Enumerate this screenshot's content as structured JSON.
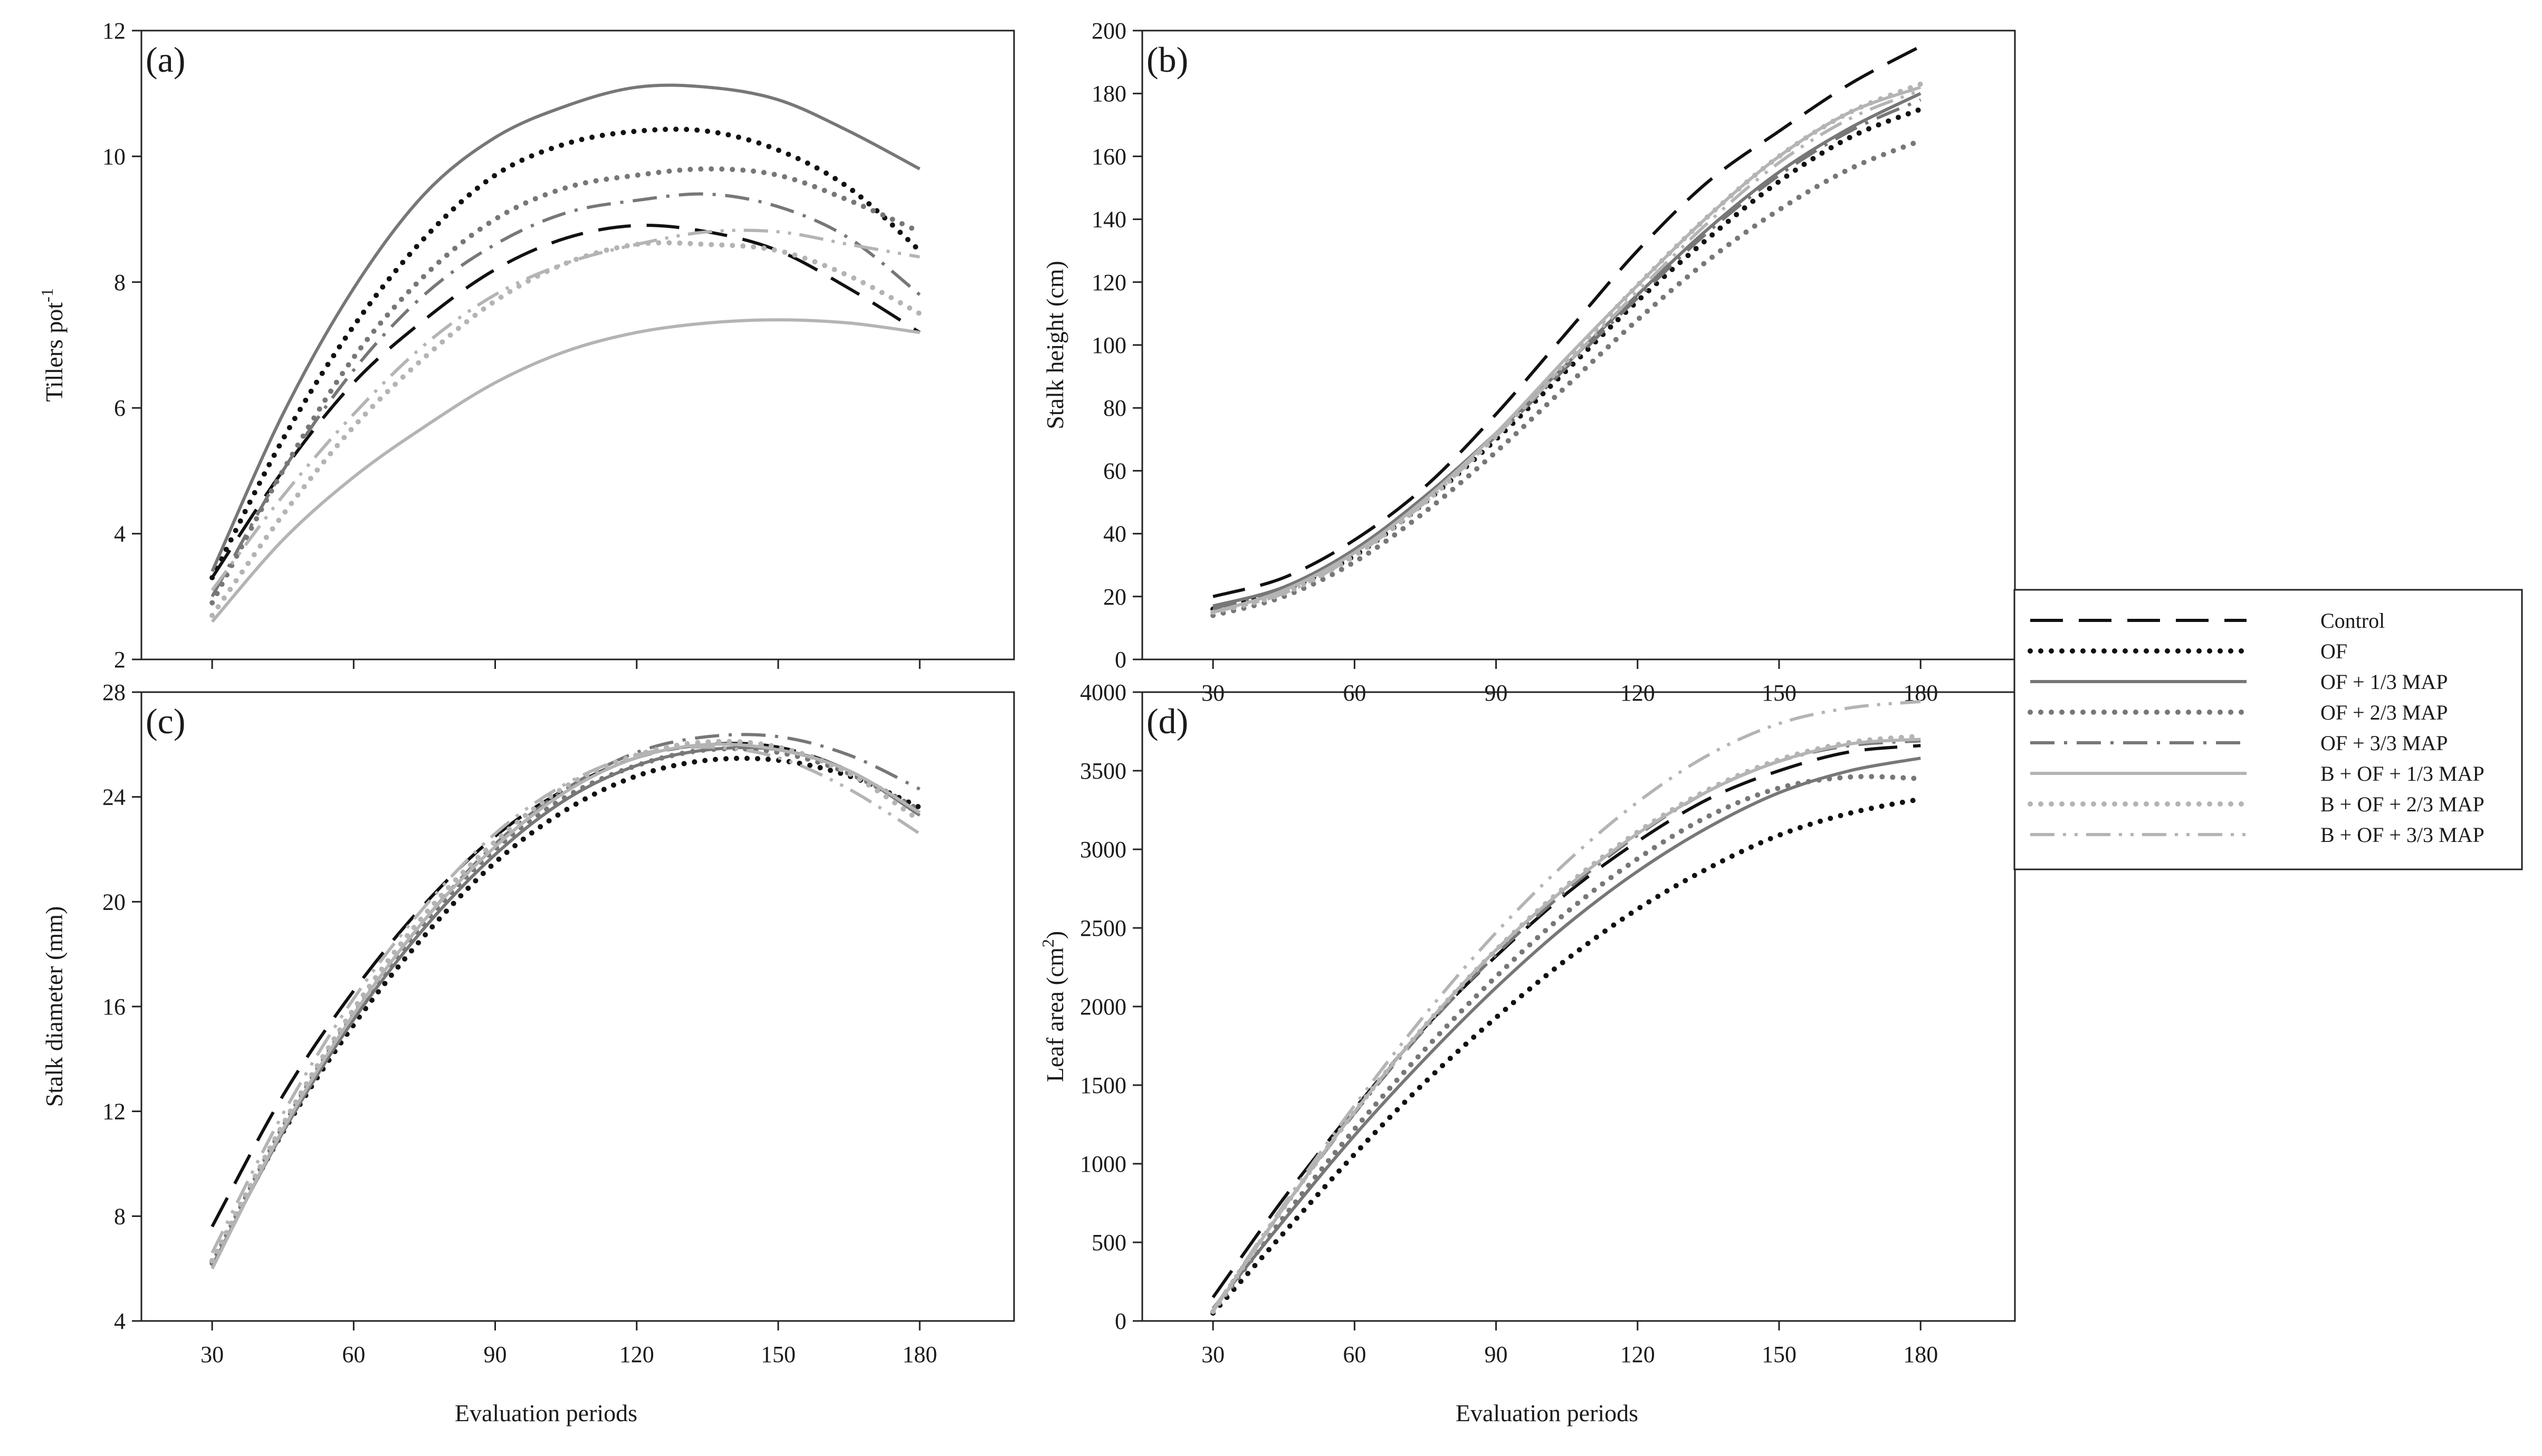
{
  "figure": {
    "legend_title": "",
    "series_styles": [
      {
        "name": "Control",
        "color": "#111111",
        "dash": "long-dash",
        "weight": "normal"
      },
      {
        "name": "OF",
        "color": "#111111",
        "dash": "dotted",
        "weight": "heavy"
      },
      {
        "name": "OF + 1/3 MAP",
        "color": "#777777",
        "dash": "solid",
        "weight": "normal"
      },
      {
        "name": "OF + 2/3 MAP",
        "color": "#777777",
        "dash": "dotted",
        "weight": "heavy"
      },
      {
        "name": "OF + 3/3 MAP",
        "color": "#777777",
        "dash": "dash-dot",
        "weight": "normal"
      },
      {
        "name": "B + OF + 1/3 MAP",
        "color": "#b4b4b4",
        "dash": "solid",
        "weight": "normal"
      },
      {
        "name": "B + OF + 2/3 MAP",
        "color": "#b4b4b4",
        "dash": "dotted",
        "weight": "heavy"
      },
      {
        "name": "B + OF + 3/3 MAP",
        "color": "#b4b4b4",
        "dash": "dash-dot-dot",
        "weight": "normal"
      }
    ]
  },
  "chart_data": [
    {
      "id": "a",
      "panel_label": "(a)",
      "type": "line",
      "xlabel": "",
      "ylabel_main": "Tillers pot",
      "ylabel_sup": "-1",
      "xlim": [
        15,
        200
      ],
      "ylim": [
        2,
        12
      ],
      "xticks": [
        30,
        60,
        90,
        120,
        150,
        180
      ],
      "yticks": [
        2,
        4,
        6,
        8,
        10,
        12
      ],
      "show_x_tick_labels": false,
      "x": [
        30,
        45,
        60,
        75,
        90,
        105,
        120,
        135,
        150,
        165,
        180
      ],
      "series": [
        {
          "name": "Control",
          "values": [
            3.3,
            5.0,
            6.4,
            7.4,
            8.2,
            8.7,
            8.9,
            8.8,
            8.5,
            7.9,
            7.2
          ]
        },
        {
          "name": "OF",
          "values": [
            3.3,
            5.5,
            7.3,
            8.7,
            9.7,
            10.2,
            10.4,
            10.4,
            10.1,
            9.5,
            8.5
          ]
        },
        {
          "name": "OF + 1/3 MAP",
          "values": [
            3.4,
            5.9,
            7.9,
            9.4,
            10.3,
            10.8,
            11.1,
            11.1,
            10.9,
            10.4,
            9.8
          ]
        },
        {
          "name": "OF + 2/3 MAP",
          "values": [
            2.9,
            5.0,
            6.8,
            8.1,
            9.0,
            9.5,
            9.7,
            9.8,
            9.7,
            9.3,
            8.8
          ]
        },
        {
          "name": "OF + 3/3 MAP",
          "values": [
            3.0,
            5.0,
            6.6,
            7.8,
            8.6,
            9.1,
            9.3,
            9.4,
            9.2,
            8.7,
            7.8
          ]
        },
        {
          "name": "B + OF + 1/3 MAP",
          "values": [
            2.6,
            3.9,
            4.9,
            5.7,
            6.4,
            6.9,
            7.2,
            7.35,
            7.4,
            7.35,
            7.2
          ]
        },
        {
          "name": "B + OF + 2/3 MAP",
          "values": [
            2.7,
            4.3,
            5.7,
            6.8,
            7.7,
            8.3,
            8.6,
            8.6,
            8.5,
            8.1,
            7.5
          ]
        },
        {
          "name": "B + OF + 3/3 MAP",
          "values": [
            3.1,
            4.6,
            5.9,
            7.0,
            7.8,
            8.3,
            8.6,
            8.8,
            8.8,
            8.6,
            8.4
          ]
        }
      ]
    },
    {
      "id": "b",
      "panel_label": "(b)",
      "type": "line",
      "xlabel": "",
      "ylabel_main": "Stalk height (cm)",
      "ylabel_sup": "",
      "xlim": [
        15,
        200
      ],
      "ylim": [
        0,
        200
      ],
      "xticks": [
        30,
        60,
        90,
        120,
        150,
        180
      ],
      "yticks": [
        0,
        20,
        40,
        60,
        80,
        100,
        120,
        140,
        160,
        180,
        200
      ],
      "show_x_tick_labels": true,
      "x": [
        30,
        45,
        60,
        75,
        90,
        105,
        120,
        135,
        150,
        165,
        180
      ],
      "series": [
        {
          "name": "Control",
          "values": [
            20,
            26,
            38,
            55,
            78,
            104,
            130,
            152,
            168,
            183,
            195
          ]
        },
        {
          "name": "OF",
          "values": [
            16,
            22,
            33,
            50,
            70,
            92,
            114,
            134,
            152,
            166,
            175
          ]
        },
        {
          "name": "OF + 1/3 MAP",
          "values": [
            17,
            23,
            35,
            52,
            72,
            94,
            116,
            137,
            155,
            169,
            180
          ]
        },
        {
          "name": "OF + 2/3 MAP",
          "values": [
            14,
            20,
            31,
            47,
            66,
            87,
            108,
            127,
            143,
            156,
            165
          ]
        },
        {
          "name": "OF + 3/3 MAP",
          "values": [
            16,
            22,
            34,
            51,
            71,
            93,
            115,
            136,
            154,
            168,
            178
          ]
        },
        {
          "name": "B + OF + 1/3 MAP",
          "values": [
            15,
            22,
            34,
            51,
            72,
            96,
            119,
            141,
            160,
            174,
            182
          ]
        },
        {
          "name": "B + OF + 2/3 MAP",
          "values": [
            15,
            21,
            33,
            50,
            71,
            95,
            119,
            141,
            160,
            174,
            183
          ]
        },
        {
          "name": "B + OF + 3/3 MAP",
          "values": [
            15,
            21,
            33,
            50,
            71,
            94,
            117,
            139,
            158,
            172,
            181
          ]
        }
      ]
    },
    {
      "id": "c",
      "panel_label": "(c)",
      "type": "line",
      "xlabel": "Evaluation periods",
      "ylabel_main": "Stalk diameter (mm)",
      "ylabel_sup": "",
      "xlim": [
        15,
        200
      ],
      "ylim": [
        4,
        28
      ],
      "xticks": [
        30,
        60,
        90,
        120,
        150,
        180
      ],
      "yticks": [
        4,
        8,
        12,
        16,
        20,
        24,
        28
      ],
      "show_x_tick_labels": true,
      "x": [
        30,
        45,
        60,
        75,
        90,
        105,
        120,
        135,
        150,
        165,
        180
      ],
      "series": [
        {
          "name": "Control",
          "values": [
            7.6,
            12.6,
            16.6,
            19.9,
            22.5,
            24.3,
            25.5,
            26.0,
            25.9,
            25.0,
            23.4
          ]
        },
        {
          "name": "OF",
          "values": [
            6.3,
            11.2,
            15.3,
            18.7,
            21.5,
            23.5,
            24.8,
            25.4,
            25.4,
            24.8,
            23.6
          ]
        },
        {
          "name": "OF + 1/3 MAP",
          "values": [
            6.1,
            11.2,
            15.5,
            19.0,
            21.8,
            23.9,
            25.2,
            25.8,
            25.8,
            25.0,
            23.3
          ]
        },
        {
          "name": "OF + 2/3 MAP",
          "values": [
            6.2,
            11.4,
            15.7,
            19.2,
            22.0,
            24.0,
            25.2,
            25.8,
            25.7,
            24.9,
            23.5
          ]
        },
        {
          "name": "OF + 3/3 MAP",
          "values": [
            6.0,
            11.3,
            15.7,
            19.3,
            22.2,
            24.3,
            25.7,
            26.3,
            26.3,
            25.6,
            24.3
          ]
        },
        {
          "name": "B + OF + 1/3 MAP",
          "values": [
            6.0,
            11.3,
            15.7,
            19.3,
            22.1,
            24.2,
            25.5,
            26.0,
            25.8,
            25.0,
            23.4
          ]
        },
        {
          "name": "B + OF + 2/3 MAP",
          "values": [
            6.3,
            11.5,
            15.9,
            19.5,
            22.3,
            24.4,
            25.6,
            26.1,
            25.9,
            24.9,
            23.1
          ]
        },
        {
          "name": "B + OF + 3/3 MAP",
          "values": [
            6.6,
            11.9,
            16.3,
            19.8,
            22.6,
            24.5,
            25.6,
            25.9,
            25.5,
            24.3,
            22.6
          ]
        }
      ]
    },
    {
      "id": "d",
      "panel_label": "(d)",
      "type": "line",
      "xlabel": "Evaluation periods",
      "ylabel_main": "Leaf area (cm",
      "ylabel_sup": "2",
      "ylabel_tail": ")",
      "xlim": [
        15,
        200
      ],
      "ylim": [
        0,
        4000
      ],
      "xticks": [
        30,
        60,
        90,
        120,
        150,
        180
      ],
      "yticks": [
        0,
        500,
        1000,
        1500,
        2000,
        2500,
        3000,
        3500,
        4000
      ],
      "show_x_tick_labels": true,
      "x": [
        30,
        45,
        60,
        75,
        90,
        105,
        120,
        135,
        150,
        165,
        180
      ],
      "series": [
        {
          "name": "Control",
          "values": [
            150,
            780,
            1350,
            1870,
            2320,
            2720,
            3050,
            3320,
            3500,
            3620,
            3660
          ]
        },
        {
          "name": "OF",
          "values": [
            50,
            560,
            1060,
            1520,
            1930,
            2300,
            2620,
            2880,
            3090,
            3230,
            3320
          ]
        },
        {
          "name": "OF + 1/3 MAP",
          "values": [
            80,
            640,
            1180,
            1670,
            2120,
            2520,
            2860,
            3140,
            3360,
            3500,
            3580
          ]
        },
        {
          "name": "OF + 2/3 MAP",
          "values": [
            60,
            660,
            1220,
            1730,
            2190,
            2600,
            2940,
            3210,
            3390,
            3460,
            3450
          ]
        },
        {
          "name": "OF + 3/3 MAP",
          "values": [
            70,
            720,
            1320,
            1860,
            2330,
            2740,
            3090,
            3370,
            3560,
            3660,
            3690
          ]
        },
        {
          "name": "B + OF + 1/3 MAP",
          "values": [
            60,
            720,
            1330,
            1880,
            2360,
            2760,
            3100,
            3370,
            3560,
            3670,
            3700
          ]
        },
        {
          "name": "B + OF + 2/3 MAP",
          "values": [
            60,
            720,
            1330,
            1880,
            2360,
            2770,
            3110,
            3380,
            3570,
            3680,
            3720
          ]
        },
        {
          "name": "B + OF + 3/3 MAP",
          "values": [
            70,
            740,
            1370,
            1950,
            2470,
            2920,
            3300,
            3600,
            3800,
            3900,
            3940
          ]
        }
      ]
    }
  ]
}
